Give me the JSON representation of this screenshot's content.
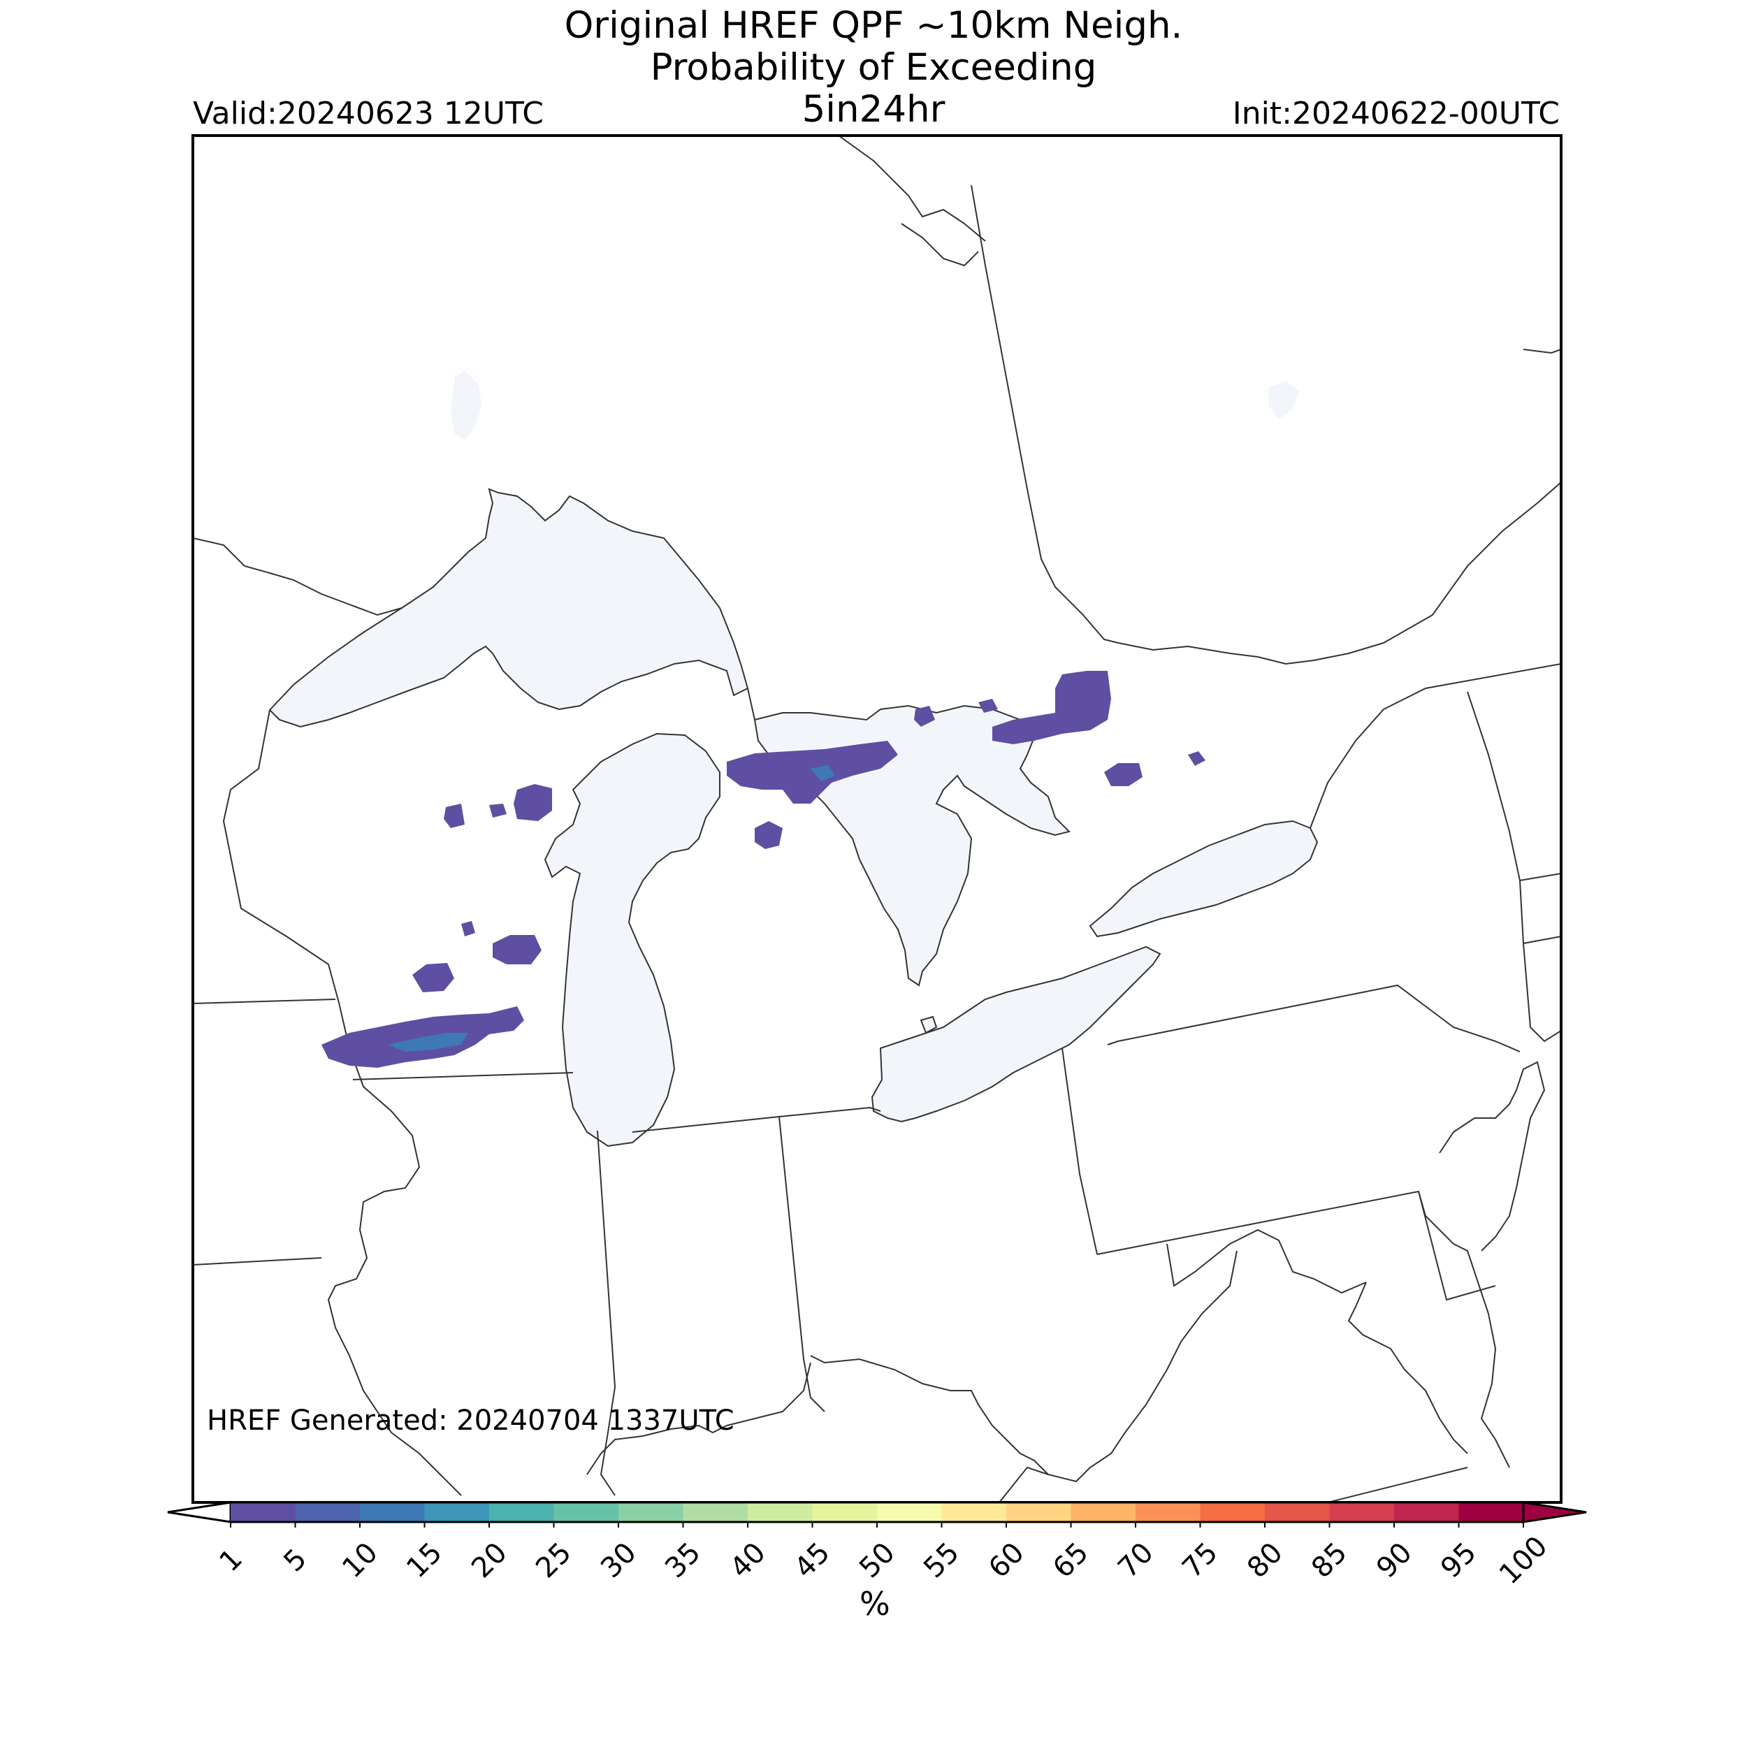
{
  "header": {
    "title_line1": "Original HREF QPF ~10km Neigh.",
    "title_line2": "Probability of Exceeding",
    "title_line3": "5in24hr",
    "valid": "Valid:20240623 12UTC",
    "init": "Init:20240622-00UTC"
  },
  "footer": {
    "generated": "HREF Generated: 20240704 1337UTC"
  },
  "colorbar": {
    "label": "%",
    "ticks": [
      "1",
      "5",
      "10",
      "15",
      "20",
      "25",
      "30",
      "35",
      "40",
      "45",
      "50",
      "55",
      "60",
      "65",
      "70",
      "75",
      "80",
      "85",
      "90",
      "95",
      "100"
    ],
    "colors": [
      "#5e4fa2",
      "#4d63ad",
      "#3e79b5",
      "#3d96b7",
      "#4db1af",
      "#68c3a6",
      "#89d0a4",
      "#afdda4",
      "#cfeca0",
      "#e6f59d",
      "#f7fbaf",
      "#fee99a",
      "#fed482",
      "#fdb467",
      "#fa9256",
      "#f46d43",
      "#e55749",
      "#d5404e",
      "#be254f",
      "#9e0142"
    ],
    "under_color": "#ffffff",
    "over_color": "#9e0142"
  },
  "map_colors": {
    "water": "#f2f6fb",
    "probability_low": "#5e4fa2",
    "probability_mid": "#3e79b5"
  }
}
